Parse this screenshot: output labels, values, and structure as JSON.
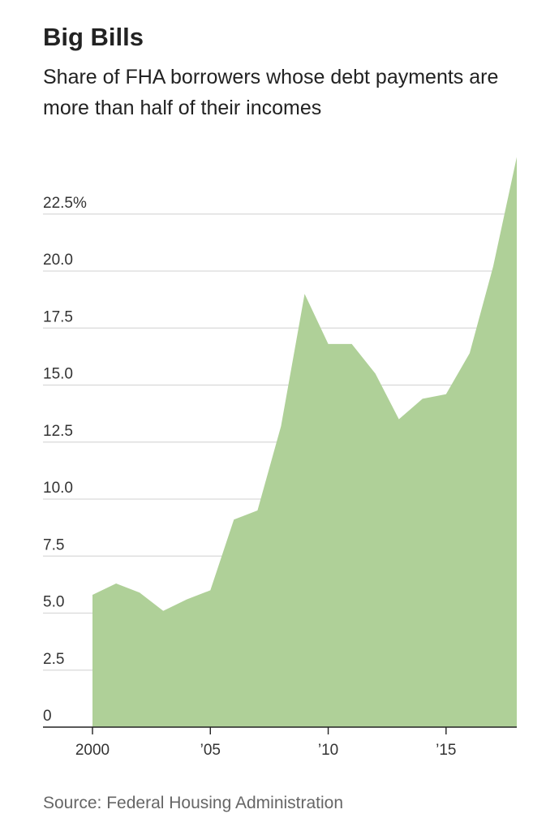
{
  "header": {
    "title": "Big Bills",
    "subtitle": "Share of FHA borrowers whose debt payments are more than half of their incomes"
  },
  "source": "Source: Federal Housing Administration",
  "colors": {
    "area": "#afd098",
    "grid": "#d9d9d9",
    "axis": "#222222"
  },
  "chart_data": {
    "type": "area",
    "title": "Big Bills",
    "subtitle": "Share of FHA borrowers whose debt payments are more than half of their incomes",
    "xlabel": "",
    "ylabel": "",
    "x": [
      2000,
      2001,
      2002,
      2003,
      2004,
      2005,
      2006,
      2007,
      2008,
      2009,
      2010,
      2011,
      2012,
      2013,
      2014,
      2015,
      2016,
      2017,
      2018
    ],
    "series": [
      {
        "values": [
          5.8,
          6.3,
          5.9,
          5.1,
          5.6,
          6.0,
          9.1,
          9.5,
          13.2,
          19.0,
          16.8,
          16.8,
          15.5,
          13.5,
          14.4,
          14.6,
          16.4,
          20.2,
          25.0
        ]
      }
    ],
    "xlim": [
      1998,
      2018
    ],
    "ylim": [
      0,
      25
    ],
    "y_ticks": [
      0,
      2.5,
      5.0,
      7.5,
      10.0,
      12.5,
      15.0,
      17.5,
      20.0,
      22.5
    ],
    "y_tick_labels": [
      "0",
      "2.5",
      "5.0",
      "7.5",
      "10.0",
      "12.5",
      "15.0",
      "17.5",
      "20.0",
      "22.5%"
    ],
    "x_ticks": [
      2000,
      2005,
      2010,
      2015
    ],
    "x_tick_labels": [
      "2000",
      "’05",
      "’10",
      "’15"
    ],
    "grid": true
  }
}
